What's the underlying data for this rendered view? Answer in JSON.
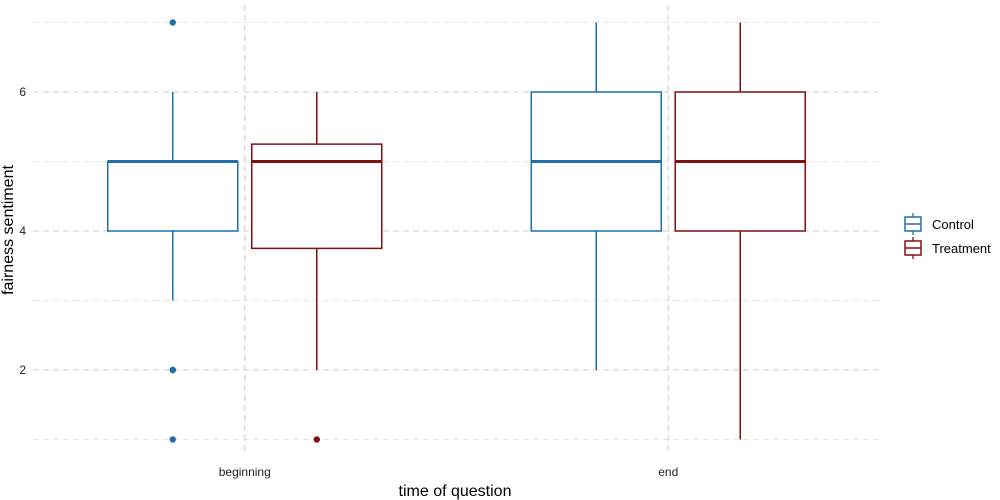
{
  "chart_data": {
    "type": "boxplot",
    "xlabel": "time of question",
    "ylabel": "fairness sentiment",
    "categories": [
      "beginning",
      "end"
    ],
    "ylim": [
      0.7,
      7.3
    ],
    "y_ticks": [
      2,
      4,
      6
    ],
    "grid": true,
    "legend_position": "right",
    "series": [
      {
        "name": "Control",
        "color": "#1f6fa8",
        "boxes": [
          {
            "category": "beginning",
            "min": 3,
            "q1": 4,
            "median": 5,
            "q3": 5,
            "max": 6,
            "outliers": [
              7,
              2,
              2,
              1
            ]
          },
          {
            "category": "end",
            "min": 2,
            "q1": 4,
            "median": 5,
            "q3": 6,
            "max": 7,
            "outliers": []
          }
        ]
      },
      {
        "name": "Treatment",
        "color": "#7f1010",
        "boxes": [
          {
            "category": "beginning",
            "min": 2,
            "q1": 3.75,
            "median": 5,
            "q3": 5.25,
            "max": 6,
            "outliers": [
              1
            ]
          },
          {
            "category": "end",
            "min": 1,
            "q1": 4,
            "median": 5,
            "q3": 6,
            "max": 7,
            "outliers": []
          }
        ]
      }
    ]
  }
}
